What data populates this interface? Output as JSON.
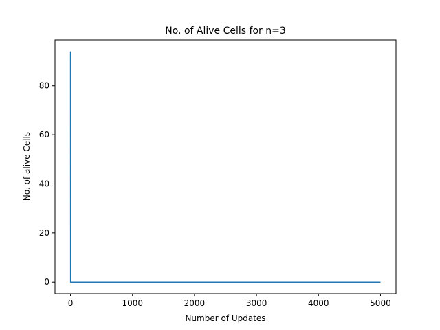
{
  "chart_data": {
    "type": "line",
    "title": "No. of Alive Cells for n=3",
    "xlabel": "Number of Updates",
    "ylabel": "No. of alive Cells",
    "xlim": [
      -250,
      5250
    ],
    "ylim": [
      -4.7,
      98.7
    ],
    "xticks": [
      0,
      1000,
      2000,
      3000,
      4000,
      5000
    ],
    "yticks": [
      0,
      20,
      40,
      60,
      80
    ],
    "grid": false,
    "series": [
      {
        "color": "#1f77b4",
        "x": [
          0,
          1,
          5000
        ],
        "y": [
          94,
          0,
          0
        ]
      }
    ]
  }
}
